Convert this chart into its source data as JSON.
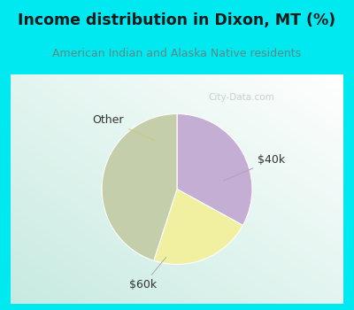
{
  "title": "Income distribution in Dixon, MT (%)",
  "subtitle": "American Indian and Alaska Native residents",
  "slices": [
    {
      "label": "$40k",
      "value": 33,
      "color": "#c4aed4"
    },
    {
      "label": "Other",
      "value": 22,
      "color": "#f0f0a0"
    },
    {
      "label": "$60k",
      "value": 45,
      "color": "#c5ceaa"
    }
  ],
  "startangle": 90,
  "title_color": "#1a1a1a",
  "subtitle_color": "#5a8a88",
  "cyan_bg": "#00e8f0",
  "chart_bg_tl": "#ddf0e8",
  "chart_bg_br": "#f0f8f8",
  "watermark": "City-Data.com"
}
